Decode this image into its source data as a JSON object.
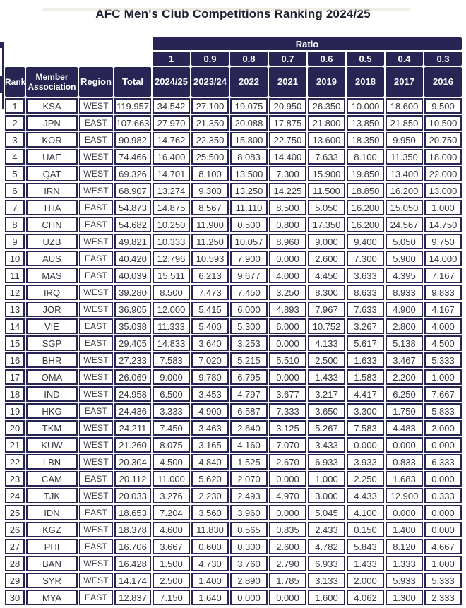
{
  "title": "AFC Men's Club Competitions Ranking 2024/25",
  "colors": {
    "header_bg": "#282454",
    "cell_border": "#282454",
    "header_text": "#ffffff",
    "body_text": "#35353f",
    "title_text": "#1d1d2e"
  },
  "chart_data": {
    "type": "table",
    "title": "AFC Men's Club Competitions Ranking 2024/25",
    "ratio_header": {
      "label": "Ratio",
      "values": [
        "1",
        "0.9",
        "0.8",
        "0.7",
        "0.6",
        "0.5",
        "0.4",
        "0.3"
      ]
    },
    "columns": [
      "Rank",
      "Member Association",
      "Region",
      "Total",
      "2024/25",
      "2023/24",
      "2022",
      "2021",
      "2019",
      "2018",
      "2017",
      "2016"
    ],
    "rows": [
      [
        1,
        "KSA",
        "WEST",
        "119.957",
        "34.542",
        "27.100",
        "19.075",
        "20.950",
        "26.350",
        "10.000",
        "18.600",
        "9.500"
      ],
      [
        2,
        "JPN",
        "EAST",
        "107.663",
        "27.970",
        "21.350",
        "20.088",
        "17.875",
        "21.800",
        "13.850",
        "21.850",
        "10.500"
      ],
      [
        3,
        "KOR",
        "EAST",
        "90.982",
        "14.762",
        "22.350",
        "15.800",
        "22.750",
        "13.600",
        "18.350",
        "9.950",
        "20.750"
      ],
      [
        4,
        "UAE",
        "WEST",
        "74.466",
        "16.400",
        "25.500",
        "8.083",
        "14.400",
        "7.633",
        "8.100",
        "11.350",
        "18.000"
      ],
      [
        5,
        "QAT",
        "WEST",
        "69.326",
        "14.701",
        "8.100",
        "13.500",
        "7.300",
        "15.900",
        "19.850",
        "13.400",
        "22.000"
      ],
      [
        6,
        "IRN",
        "WEST",
        "68.907",
        "13.274",
        "9.300",
        "13.250",
        "14.225",
        "11.500",
        "18.850",
        "16.200",
        "13.000"
      ],
      [
        7,
        "THA",
        "EAST",
        "54.873",
        "14.875",
        "8.567",
        "11.110",
        "8.500",
        "5.050",
        "16.200",
        "15.050",
        "1.000"
      ],
      [
        8,
        "CHN",
        "EAST",
        "54.682",
        "10.250",
        "11.900",
        "0.500",
        "0.800",
        "17.350",
        "16.200",
        "24.567",
        "14.750"
      ],
      [
        9,
        "UZB",
        "WEST",
        "49.821",
        "10.333",
        "11.250",
        "10.057",
        "8.960",
        "9.000",
        "9.400",
        "5.050",
        "9.750"
      ],
      [
        10,
        "AUS",
        "EAST",
        "40.420",
        "12.796",
        "10.593",
        "7.900",
        "0.000",
        "2.600",
        "7.300",
        "5.900",
        "14.000"
      ],
      [
        11,
        "MAS",
        "EAST",
        "40.039",
        "15.511",
        "6.213",
        "9.677",
        "4.000",
        "4.450",
        "3.633",
        "4.395",
        "7.167"
      ],
      [
        12,
        "IRQ",
        "WEST",
        "39.280",
        "8.500",
        "7.473",
        "7.450",
        "3.250",
        "8.300",
        "8.633",
        "8.933",
        "9.833"
      ],
      [
        13,
        "JOR",
        "WEST",
        "36.905",
        "12.000",
        "5.415",
        "6.000",
        "4.893",
        "7.967",
        "7.633",
        "4.900",
        "4.167"
      ],
      [
        14,
        "VIE",
        "EAST",
        "35.038",
        "11.333",
        "5.400",
        "5.300",
        "6.000",
        "10.752",
        "3.267",
        "2.800",
        "4.000"
      ],
      [
        15,
        "SGP",
        "EAST",
        "29.405",
        "14.833",
        "3.640",
        "3.253",
        "0.000",
        "4.133",
        "5.617",
        "5.138",
        "4.500"
      ],
      [
        16,
        "BHR",
        "WEST",
        "27.233",
        "7.583",
        "7.020",
        "5.215",
        "5.510",
        "2.500",
        "1.633",
        "3.467",
        "5.333"
      ],
      [
        17,
        "OMA",
        "WEST",
        "26.069",
        "9.000",
        "9.780",
        "6.795",
        "0.000",
        "1.433",
        "1.583",
        "2.200",
        "1.000"
      ],
      [
        18,
        "IND",
        "WEST",
        "24.958",
        "6.500",
        "3.453",
        "4.797",
        "3.677",
        "3.217",
        "4.417",
        "6.250",
        "7.667"
      ],
      [
        19,
        "HKG",
        "EAST",
        "24.436",
        "3.333",
        "4.900",
        "6.587",
        "7.333",
        "3.650",
        "3.300",
        "1.750",
        "5.833"
      ],
      [
        20,
        "TKM",
        "WEST",
        "24.211",
        "7.450",
        "3.463",
        "2.640",
        "3.125",
        "5.267",
        "7.583",
        "4.483",
        "2.000"
      ],
      [
        21,
        "KUW",
        "WEST",
        "21.260",
        "8.075",
        "3.165",
        "4.160",
        "7.070",
        "3.433",
        "0.000",
        "0.000",
        "0.000"
      ],
      [
        22,
        "LBN",
        "WEST",
        "20.304",
        "4.500",
        "4.840",
        "1.525",
        "2.670",
        "6.933",
        "3.933",
        "0.833",
        "6.333"
      ],
      [
        23,
        "CAM",
        "EAST",
        "20.112",
        "11.000",
        "5.620",
        "2.070",
        "0.000",
        "1.000",
        "2.250",
        "1.683",
        "0.000"
      ],
      [
        24,
        "TJK",
        "WEST",
        "20.033",
        "3.276",
        "2.230",
        "2.493",
        "4.970",
        "3.000",
        "4.433",
        "12.900",
        "0.333"
      ],
      [
        25,
        "IDN",
        "EAST",
        "18.653",
        "7.204",
        "3.560",
        "3.960",
        "0.000",
        "5.045",
        "4.100",
        "0.000",
        "0.000"
      ],
      [
        26,
        "KGZ",
        "WEST",
        "18.378",
        "4.600",
        "11.830",
        "0.565",
        "0.835",
        "2.433",
        "0.150",
        "1.400",
        "0.000"
      ],
      [
        27,
        "PHI",
        "EAST",
        "16.706",
        "3.667",
        "0.600",
        "0.300",
        "2.600",
        "4.782",
        "5.843",
        "8.120",
        "4.667"
      ],
      [
        28,
        "BAN",
        "WEST",
        "16.428",
        "1.500",
        "4.730",
        "3.760",
        "2.790",
        "6.933",
        "1.433",
        "1.333",
        "1.000"
      ],
      [
        29,
        "SYR",
        "WEST",
        "14.174",
        "2.500",
        "1.400",
        "2.890",
        "1.785",
        "3.133",
        "2.000",
        "5.933",
        "5.333"
      ],
      [
        30,
        "MYA",
        "EAST",
        "12.837",
        "7.150",
        "1.640",
        "0.000",
        "0.000",
        "1.600",
        "4.062",
        "1.300",
        "2.333"
      ]
    ]
  }
}
